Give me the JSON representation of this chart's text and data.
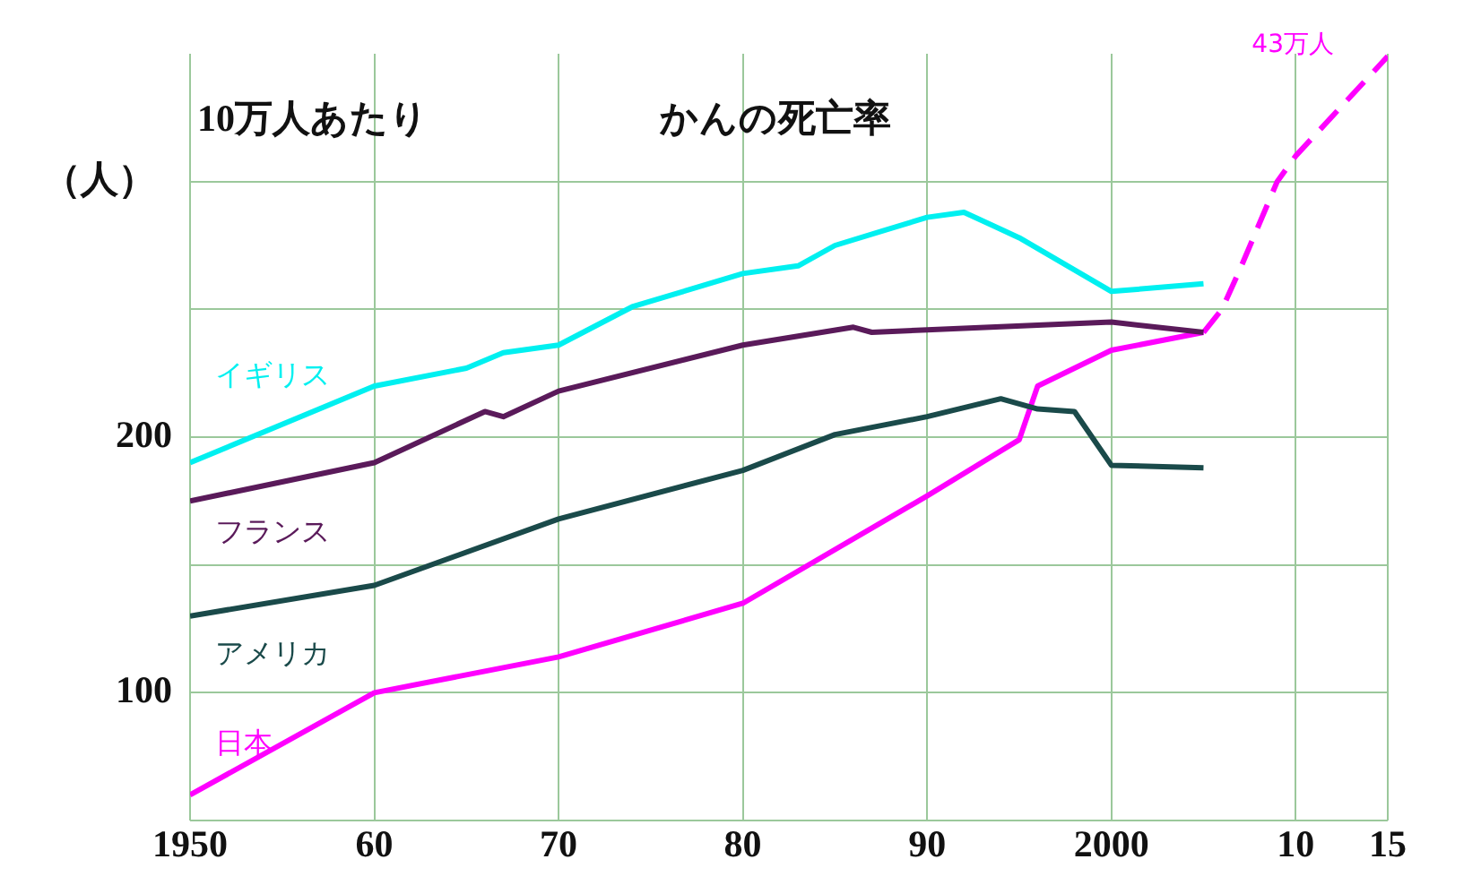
{
  "chart_data": {
    "type": "line",
    "title": "かんの死亡率",
    "subtitle": "10万人あたり",
    "ylabel": "（人）",
    "annotations": [
      {
        "text": "43万人",
        "x": 2015,
        "y": 349
      }
    ],
    "xlim": [
      1950,
      2015
    ],
    "xticks": [
      1950,
      {
        "value": 1960,
        "label": "60"
      },
      {
        "value": 1970,
        "label": "70"
      },
      {
        "value": 1980,
        "label": "80"
      },
      {
        "value": 1990,
        "label": "90"
      },
      2000,
      {
        "value": 2010,
        "label": "10"
      },
      {
        "value": 2015,
        "label": "15"
      }
    ],
    "ylim": [
      50,
      350
    ],
    "yticks": [
      {
        "value": 50,
        "label": null
      },
      100,
      {
        "value": 150,
        "label": null
      },
      200,
      {
        "value": 250,
        "label": null
      },
      {
        "value": 300,
        "label": null
      }
    ],
    "grid": true,
    "marker": "none",
    "line_style": "solid",
    "series": [
      {
        "name": "イギリス",
        "color": "#00f0f0",
        "x": [
          1950,
          1960,
          1965,
          1967,
          1970,
          1974,
          1980,
          1983,
          1985,
          1990,
          1992,
          1995,
          2000,
          2005
        ],
        "values": [
          190,
          220,
          227,
          233,
          236,
          251,
          264,
          267,
          275,
          286,
          288,
          278,
          257,
          260
        ]
      },
      {
        "name": "フランス",
        "color": "#5a1a5a",
        "x": [
          1950,
          1960,
          1966,
          1967,
          1970,
          1980,
          1986,
          1987,
          1990,
          2000,
          2005
        ],
        "values": [
          175,
          190,
          210,
          208,
          218,
          236,
          243,
          241,
          242,
          245,
          241
        ]
      },
      {
        "name": "アメリカ",
        "color": "#1a4a4a",
        "x": [
          1950,
          1960,
          1970,
          1980,
          1985,
          1990,
          1994,
          1996,
          1998,
          2000,
          2005
        ],
        "values": [
          130,
          142,
          168,
          187,
          201,
          208,
          215,
          211,
          210,
          189,
          188
        ]
      },
      {
        "name": "日本",
        "color": "#ff00ff",
        "x": [
          1950,
          1960,
          1970,
          1980,
          1990,
          1995,
          1996,
          2000,
          2005
        ],
        "values": [
          60,
          100,
          114,
          135,
          177,
          199,
          220,
          234,
          241
        ]
      },
      {
        "color": "#ff00ff",
        "line_style": "dashed",
        "x": [
          2005,
          2006,
          2007,
          2009,
          2010,
          2015
        ],
        "values": [
          241,
          250,
          266,
          300,
          310,
          349
        ]
      }
    ]
  }
}
